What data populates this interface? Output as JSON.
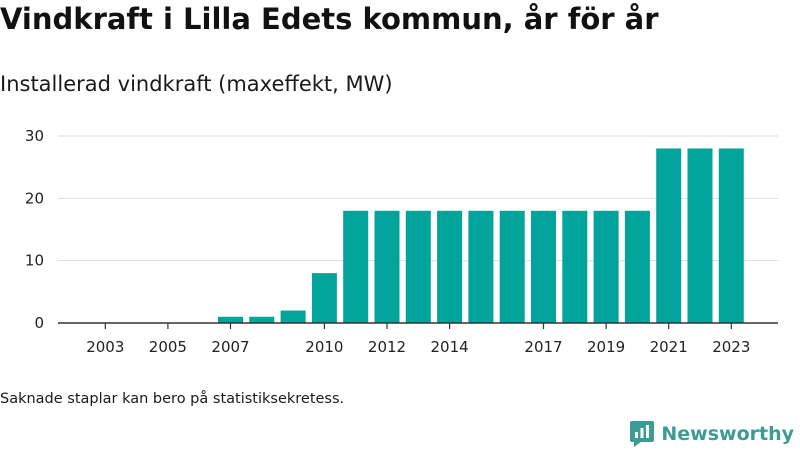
{
  "title": "Vindkraft i Lilla Edets kommun, år för år",
  "subtitle": "Installerad vindkraft (maxeffekt, MW)",
  "note": "Saknade staplar kan bero på statistiksekretess.",
  "brand": {
    "name": "Newsworthy",
    "icon": "newsworthy-logo-icon",
    "color": "#3b9c95"
  },
  "chart_data": {
    "type": "bar",
    "categories": [
      2002,
      2003,
      2004,
      2005,
      2006,
      2007,
      2008,
      2009,
      2010,
      2011,
      2012,
      2013,
      2014,
      2015,
      2016,
      2017,
      2018,
      2019,
      2020,
      2021,
      2022,
      2023
    ],
    "values": [
      0,
      0,
      0,
      0,
      0,
      1,
      1,
      2,
      8,
      18,
      18,
      18,
      18,
      18,
      18,
      18,
      18,
      18,
      18,
      28,
      28,
      28
    ],
    "xticks": [
      "2003",
      "2005",
      "2007",
      "2010",
      "2012",
      "2014",
      "2017",
      "2019",
      "2021",
      "2023"
    ],
    "yticks": [
      0,
      10,
      20,
      30
    ],
    "ylim": [
      0,
      30
    ],
    "bar_color": "#00a49a",
    "grid": true
  }
}
